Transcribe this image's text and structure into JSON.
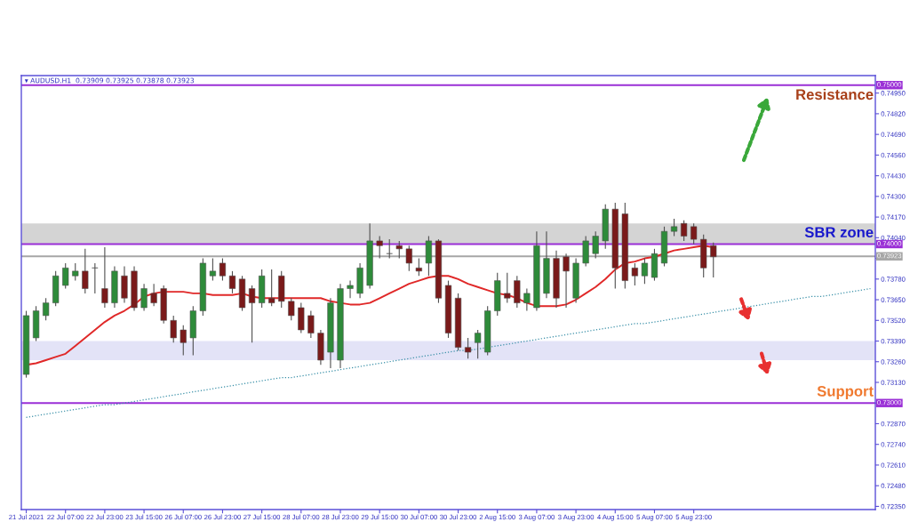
{
  "chart_data": {
    "type": "candlestick",
    "title": "▾ AUDUSD.H1  0.73909 0.73925 0.73878 0.73923",
    "categories": [
      "21 Jul 2021",
      null,
      null,
      null,
      "22 Jul 07:00",
      null,
      null,
      null,
      "22 Jul 23:00",
      null,
      null,
      null,
      "23 Jul 15:00",
      null,
      null,
      null,
      "26 Jul 07:00",
      null,
      null,
      null,
      "26 Jul 23:00",
      null,
      null,
      null,
      "27 Jul 15:00",
      null,
      null,
      null,
      "28 Jul 07:00",
      null,
      null,
      null,
      "28 Jul 23:00",
      null,
      null,
      null,
      "29 Jul 15:00",
      null,
      null,
      null,
      "30 Jul 07:00",
      null,
      null,
      null,
      "30 Jul 23:00",
      null,
      null,
      null,
      "2 Aug 15:00",
      null,
      null,
      null,
      "3 Aug 07:00",
      null,
      null,
      null,
      "3 Aug 23:00",
      null,
      null,
      null,
      "4 Aug 15:00",
      null,
      null,
      null,
      "5 Aug 07:00",
      null,
      null,
      null,
      "5 Aug 23:00",
      null,
      null,
      null,
      null,
      null,
      null,
      null,
      null,
      null,
      null,
      null,
      null,
      null,
      null,
      null,
      null,
      null,
      null
    ],
    "ohlc": [
      [
        0.7318,
        0.7358,
        0.7316,
        0.7355
      ],
      [
        0.7341,
        0.7361,
        0.7339,
        0.7358
      ],
      [
        0.7355,
        0.7366,
        0.7352,
        0.7363
      ],
      [
        0.7363,
        0.7383,
        0.7361,
        0.738
      ],
      [
        0.7374,
        0.7388,
        0.7372,
        0.7385
      ],
      [
        0.738,
        0.7388,
        0.7377,
        0.7383
      ],
      [
        0.7383,
        0.7397,
        0.7369,
        0.7372
      ],
      [
        0.7385,
        0.7388,
        0.7369,
        0.7385
      ],
      [
        0.7372,
        0.7398,
        0.736,
        0.7363
      ],
      [
        0.7363,
        0.7386,
        0.736,
        0.7383
      ],
      [
        0.738,
        0.7386,
        0.7363,
        0.7366
      ],
      [
        0.7383,
        0.7386,
        0.7358,
        0.736
      ],
      [
        0.736,
        0.7375,
        0.7358,
        0.7372
      ],
      [
        0.7369,
        0.7375,
        0.7361,
        0.7363
      ],
      [
        0.7372,
        0.7374,
        0.735,
        0.7352
      ],
      [
        0.7352,
        0.7355,
        0.7338,
        0.7341
      ],
      [
        0.7346,
        0.7349,
        0.733,
        0.7338
      ],
      [
        0.7341,
        0.7361,
        0.733,
        0.7358
      ],
      [
        0.7358,
        0.7391,
        0.7355,
        0.7388
      ],
      [
        0.738,
        0.7391,
        0.7377,
        0.7383
      ],
      [
        0.7388,
        0.7391,
        0.7377,
        0.738
      ],
      [
        0.738,
        0.7383,
        0.7369,
        0.7372
      ],
      [
        0.7378,
        0.738,
        0.7358,
        0.736
      ],
      [
        0.7372,
        0.7374,
        0.7338,
        0.7363
      ],
      [
        0.7363,
        0.7384,
        0.736,
        0.738
      ],
      [
        0.7366,
        0.7384,
        0.7361,
        0.7363
      ],
      [
        0.738,
        0.7383,
        0.736,
        0.7364
      ],
      [
        0.7364,
        0.7366,
        0.7352,
        0.7355
      ],
      [
        0.736,
        0.7363,
        0.7344,
        0.7346
      ],
      [
        0.7355,
        0.7358,
        0.7341,
        0.7344
      ],
      [
        0.7344,
        0.7346,
        0.7324,
        0.7327
      ],
      [
        0.7332,
        0.7366,
        0.7322,
        0.7363
      ],
      [
        0.7327,
        0.7375,
        0.7322,
        0.7372
      ],
      [
        0.7372,
        0.7377,
        0.7366,
        0.7374
      ],
      [
        0.7369,
        0.7388,
        0.7366,
        0.7385
      ],
      [
        0.7374,
        0.7413,
        0.7372,
        0.7402
      ],
      [
        0.7402,
        0.7405,
        0.7391,
        0.7399
      ],
      [
        0.7394,
        0.7403,
        0.7391,
        0.7394
      ],
      [
        0.7399,
        0.7402,
        0.7391,
        0.7397
      ],
      [
        0.7397,
        0.7399,
        0.7383,
        0.7388
      ],
      [
        0.7385,
        0.7391,
        0.738,
        0.7383
      ],
      [
        0.7388,
        0.7405,
        0.738,
        0.7402
      ],
      [
        0.7402,
        0.7403,
        0.7363,
        0.7366
      ],
      [
        0.7374,
        0.7377,
        0.7341,
        0.7344
      ],
      [
        0.7366,
        0.7369,
        0.7333,
        0.7335
      ],
      [
        0.7335,
        0.7341,
        0.7328,
        0.7332
      ],
      [
        0.7338,
        0.7346,
        0.7328,
        0.7344
      ],
      [
        0.7332,
        0.7361,
        0.733,
        0.7358
      ],
      [
        0.7358,
        0.7382,
        0.7355,
        0.7377
      ],
      [
        0.7369,
        0.7382,
        0.7363,
        0.7366
      ],
      [
        0.7377,
        0.738,
        0.736,
        0.7363
      ],
      [
        0.7363,
        0.7372,
        0.7358,
        0.7369
      ],
      [
        0.736,
        0.7408,
        0.7358,
        0.7399
      ],
      [
        0.7369,
        0.7408,
        0.7366,
        0.7391
      ],
      [
        0.7391,
        0.7396,
        0.736,
        0.7366
      ],
      [
        0.7392,
        0.7394,
        0.736,
        0.7383
      ],
      [
        0.7366,
        0.7391,
        0.7363,
        0.7388
      ],
      [
        0.7388,
        0.7405,
        0.7386,
        0.7402
      ],
      [
        0.7394,
        0.7408,
        0.7391,
        0.7405
      ],
      [
        0.7402,
        0.7425,
        0.7397,
        0.7422
      ],
      [
        0.7422,
        0.7426,
        0.7372,
        0.7385
      ],
      [
        0.7419,
        0.7426,
        0.7372,
        0.7377
      ],
      [
        0.7385,
        0.7388,
        0.7374,
        0.738
      ],
      [
        0.738,
        0.7391,
        0.7375,
        0.7388
      ],
      [
        0.7379,
        0.7397,
        0.7377,
        0.7394
      ],
      [
        0.7388,
        0.7411,
        0.7386,
        0.7408
      ],
      [
        0.7408,
        0.7416,
        0.7405,
        0.7411
      ],
      [
        0.7413,
        0.7415,
        0.7402,
        0.7405
      ],
      [
        0.7411,
        0.7413,
        0.74,
        0.7403
      ],
      [
        0.7403,
        0.7406,
        0.7379,
        0.7385
      ],
      [
        0.7399,
        0.7401,
        0.7379,
        0.7392
      ],
      null,
      null,
      null,
      null,
      null,
      null,
      null,
      null,
      null,
      null,
      null,
      null,
      null,
      null,
      null,
      null
    ],
    "series": [
      {
        "type": "line",
        "color": "#e02828",
        "line_style": "solid",
        "values": [
          0.7324,
          0.7325,
          0.7327,
          0.7329,
          0.7331,
          0.7336,
          0.7341,
          0.7346,
          0.7351,
          0.7355,
          0.7358,
          0.7362,
          0.7367,
          0.7369,
          0.737,
          0.737,
          0.737,
          0.7369,
          0.7369,
          0.7368,
          0.7368,
          0.7368,
          0.7369,
          0.7367,
          0.7366,
          0.7366,
          0.7366,
          0.7366,
          0.7366,
          0.7366,
          0.7366,
          0.7364,
          0.7363,
          0.7362,
          0.7362,
          0.7363,
          0.7366,
          0.7369,
          0.7372,
          0.7375,
          0.7377,
          0.7379,
          0.738,
          0.738,
          0.7378,
          0.7375,
          0.7373,
          0.7371,
          0.7369,
          0.7368,
          0.7366,
          0.7363,
          0.7361,
          0.7361,
          0.7361,
          0.7362,
          0.7365,
          0.7369,
          0.7373,
          0.7378,
          0.7384,
          0.7388,
          0.7389,
          0.7391,
          0.7392,
          0.7394,
          0.7396,
          0.7397,
          0.7398,
          0.7399,
          0.7398,
          null,
          null,
          null,
          null,
          null,
          null,
          null,
          null,
          null,
          null,
          null,
          null,
          null,
          null,
          null,
          null
        ]
      },
      {
        "type": "line",
        "color": "#3a90a8",
        "line_style": "dotted",
        "values": [
          0.7291,
          0.7292,
          0.7293,
          0.7294,
          0.7295,
          0.7296,
          0.7297,
          0.7298,
          0.7299,
          0.7299,
          0.73,
          0.7301,
          0.7302,
          0.7303,
          0.7304,
          0.7305,
          0.7306,
          0.7307,
          0.7308,
          0.7309,
          0.731,
          0.7311,
          0.7312,
          0.7313,
          0.7314,
          0.7315,
          0.7316,
          0.7316,
          0.7317,
          0.7318,
          0.7319,
          0.732,
          0.7321,
          0.7322,
          0.7323,
          0.7324,
          0.7325,
          0.7326,
          0.7327,
          0.7328,
          0.7329,
          0.733,
          0.7331,
          0.7332,
          0.7333,
          0.7333,
          0.7334,
          0.7335,
          0.7336,
          0.7337,
          0.7338,
          0.7339,
          0.734,
          0.7341,
          0.7342,
          0.7343,
          0.7344,
          0.7345,
          0.7346,
          0.7347,
          0.7348,
          0.7349,
          0.735,
          0.735,
          0.7351,
          0.7352,
          0.7353,
          0.7354,
          0.7355,
          0.7356,
          0.7357,
          0.7358,
          0.7359,
          0.736,
          0.7361,
          0.7362,
          0.7363,
          0.7364,
          0.7365,
          0.7366,
          0.7367,
          0.7367,
          0.7368,
          0.7369,
          0.737,
          0.7371,
          0.7372
        ]
      }
    ],
    "ref_lines": [
      {
        "axis": "y",
        "value": 0.75,
        "label": "0.75000",
        "color": "#9a2fd6"
      },
      {
        "axis": "y",
        "value": 0.74,
        "label": "0.74000",
        "color": "#9a2fd6"
      },
      {
        "axis": "y",
        "value": 0.73923,
        "label": "0.73923",
        "color": "#a6a6a6"
      },
      {
        "axis": "y",
        "value": 0.73,
        "label": "0.73000",
        "color": "#9a2fd6"
      }
    ],
    "bands": [
      {
        "axis": "y",
        "from": 0.74,
        "to": 0.7413,
        "color": "#d4d4d4"
      },
      {
        "axis": "y",
        "from": 0.7327,
        "to": 0.7339,
        "color": "#e3e3f7"
      }
    ],
    "annotations": [
      {
        "text": "Resistance",
        "y": 0.75
      },
      {
        "text": "SBR zone",
        "y": 0.74
      },
      {
        "text": "Support",
        "y": 0.73
      }
    ],
    "ylim": [
      0.7233,
      0.7506
    ],
    "yticks": [
      {
        "value": 0.7495,
        "label": "0.74950"
      },
      {
        "value": 0.7482,
        "label": "0.74820"
      },
      {
        "value": 0.7469,
        "label": "0.74690"
      },
      {
        "value": 0.7456,
        "label": "0.74560"
      },
      {
        "value": 0.7443,
        "label": "0.74430"
      },
      {
        "value": 0.743,
        "label": "0.74300"
      },
      {
        "value": 0.7417,
        "label": "0.74170"
      },
      {
        "value": 0.7404,
        "label": "0.74040"
      },
      {
        "value": 0.7391,
        "label": null
      },
      {
        "value": 0.7378,
        "label": "0.73780"
      },
      {
        "value": 0.7365,
        "label": "0.73650"
      },
      {
        "value": 0.7352,
        "label": "0.73520"
      },
      {
        "value": 0.7339,
        "label": "0.73390"
      },
      {
        "value": 0.7326,
        "label": "0.73260"
      },
      {
        "value": 0.7313,
        "label": "0.73130"
      },
      {
        "value": 0.73,
        "label": null
      },
      {
        "value": 0.7287,
        "label": "0.72870"
      },
      {
        "value": 0.7274,
        "label": "0.72740"
      },
      {
        "value": 0.7261,
        "label": "0.72610"
      },
      {
        "value": 0.7248,
        "label": "0.72480"
      },
      {
        "value": 0.7235,
        "label": "0.72350"
      }
    ],
    "grid": false
  }
}
